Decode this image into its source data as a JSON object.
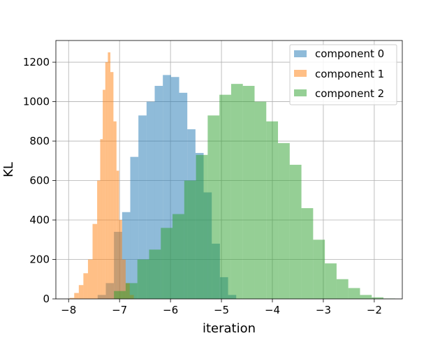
{
  "chart_data": {
    "type": "bar",
    "title": "",
    "xlabel": "iteration",
    "ylabel": "KL",
    "xlim": [
      -8.25,
      -1.45
    ],
    "ylim": [
      0,
      1310
    ],
    "xticks": [
      -8,
      -7,
      -6,
      -5,
      -4,
      -3,
      -2
    ],
    "xtick_labels": [
      "−8",
      "−7",
      "−6",
      "−5",
      "−4",
      "−3",
      "−2"
    ],
    "yticks": [
      0,
      200,
      400,
      600,
      800,
      1000,
      1200
    ],
    "ytick_labels": [
      "0",
      "200",
      "400",
      "600",
      "800",
      "1000",
      "1200"
    ],
    "grid": true,
    "legend_position": "top-right",
    "series": [
      {
        "name": "component 0",
        "color": "#1f77b4",
        "bins": [
          [
            -7.43,
            20
          ],
          [
            -7.27,
            80
          ],
          [
            -7.11,
            340
          ],
          [
            -6.95,
            440
          ],
          [
            -6.79,
            720
          ],
          [
            -6.63,
            930
          ],
          [
            -6.47,
            1000
          ],
          [
            -6.31,
            1080
          ],
          [
            -6.15,
            1135
          ],
          [
            -5.99,
            1125
          ],
          [
            -5.83,
            1045
          ],
          [
            -5.67,
            860
          ],
          [
            -5.51,
            740
          ],
          [
            -5.35,
            540
          ],
          [
            -5.19,
            280
          ],
          [
            -5.03,
            110
          ],
          [
            -4.87,
            20
          ]
        ]
      },
      {
        "name": "component 1",
        "color": "#ff7f0e",
        "bins": [
          [
            -7.98,
            5
          ],
          [
            -7.89,
            30
          ],
          [
            -7.8,
            70
          ],
          [
            -7.71,
            130
          ],
          [
            -7.62,
            200
          ],
          [
            -7.53,
            380
          ],
          [
            -7.44,
            600
          ],
          [
            -7.38,
            810
          ],
          [
            -7.33,
            1060
          ],
          [
            -7.28,
            1200
          ],
          [
            -7.23,
            1250
          ],
          [
            -7.18,
            1150
          ],
          [
            -7.12,
            900
          ],
          [
            -7.06,
            650
          ],
          [
            -7.01,
            400
          ],
          [
            -6.95,
            200
          ],
          [
            -6.88,
            80
          ],
          [
            -6.8,
            20
          ]
        ]
      },
      {
        "name": "component 2",
        "color": "#2ca02c",
        "bins": [
          [
            -7.11,
            40
          ],
          [
            -6.88,
            80
          ],
          [
            -6.65,
            200
          ],
          [
            -6.42,
            250
          ],
          [
            -6.19,
            360
          ],
          [
            -5.96,
            430
          ],
          [
            -5.73,
            600
          ],
          [
            -5.5,
            730
          ],
          [
            -5.27,
            930
          ],
          [
            -5.04,
            1035
          ],
          [
            -4.81,
            1090
          ],
          [
            -4.58,
            1080
          ],
          [
            -4.35,
            1000
          ],
          [
            -4.12,
            900
          ],
          [
            -3.89,
            790
          ],
          [
            -3.66,
            680
          ],
          [
            -3.43,
            460
          ],
          [
            -3.2,
            300
          ],
          [
            -2.97,
            180
          ],
          [
            -2.74,
            100
          ],
          [
            -2.51,
            55
          ],
          [
            -2.28,
            20
          ],
          [
            -2.05,
            8
          ],
          [
            -1.82,
            2
          ]
        ]
      }
    ]
  }
}
